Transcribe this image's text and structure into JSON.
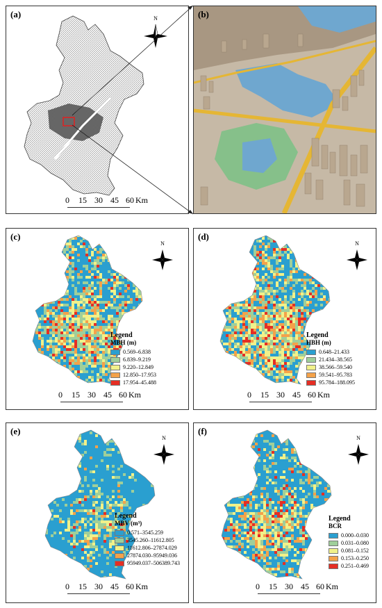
{
  "panels": {
    "a": {
      "label": "(a)",
      "scale": {
        "ticks": [
          "0",
          "15",
          "30",
          "45",
          "60"
        ],
        "unit": "Km"
      }
    },
    "b": {
      "label": "(b)"
    },
    "c": {
      "label": "(c)",
      "legend_title": "Legend",
      "variable": "MBH (m)",
      "classes": [
        "0.569–6.838",
        "6.839–9.219",
        "9.220–12.849",
        "12.850–17.953",
        "17.954–45.488"
      ],
      "scale": {
        "ticks": [
          "0",
          "15",
          "30",
          "45",
          "60"
        ],
        "unit": "Km"
      }
    },
    "d": {
      "label": "(d)",
      "legend_title": "Legend",
      "variable": "HBH (m)",
      "classes": [
        "0.648–21.433",
        "21.434–38.565",
        "38.566–59.540",
        "59.541–95.783",
        "95.784–188.095"
      ],
      "scale": {
        "ticks": [
          "0",
          "15",
          "30",
          "45",
          "60"
        ],
        "unit": "Km"
      }
    },
    "e": {
      "label": "(e)",
      "legend_title": "Legend",
      "variable": "MBV (m³)",
      "classes": [
        "0.571–3545.259",
        "3545.260–11612.805",
        "11612.806–27874.029",
        "27874.030–95949.036",
        "95949.037–506389.743"
      ],
      "scale": {
        "ticks": [
          "0",
          "15",
          "30",
          "45",
          "60"
        ],
        "unit": "Km"
      }
    },
    "f": {
      "label": "(f)",
      "legend_title": "Legend",
      "variable": "BCR",
      "classes": [
        "0.000–0.030",
        "0.031–0.080",
        "0.081–0.152",
        "0.153–0.250",
        "0.251–0.469"
      ],
      "scale": {
        "ticks": [
          "0",
          "15",
          "30",
          "45",
          "60"
        ],
        "unit": "Km"
      }
    }
  },
  "north_label": "N",
  "colors": {
    "class_ramp": [
      "#2a9fd0",
      "#9fcf9a",
      "#f1f18a",
      "#f4a24a",
      "#e52e24"
    ],
    "base_map_fill": "#2a9fd0",
    "water": "#6fa7cf",
    "park": "#86c08a",
    "road": "#e5b634",
    "building": "#b9a78f"
  }
}
